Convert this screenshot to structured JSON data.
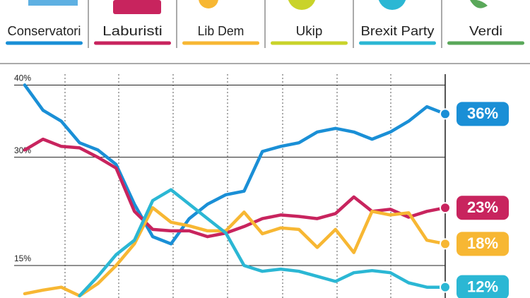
{
  "chart_data": {
    "type": "line",
    "categories": [
      null,
      null,
      null,
      null,
      null,
      null,
      null,
      null,
      null,
      null,
      null,
      null,
      null,
      null,
      null,
      null,
      null,
      null,
      null,
      null,
      null,
      null,
      null,
      null
    ],
    "ylim": [
      10.5,
      42
    ],
    "yticks": [
      {
        "value": 40,
        "label": "40%"
      },
      {
        "value": 30,
        "label": "30%"
      },
      {
        "value": 15,
        "label": "15%"
      }
    ],
    "series": [
      {
        "name": "Conservatori",
        "color": "#1a8fd6",
        "end_label": "36%",
        "values": [
          40,
          36.5,
          35,
          32,
          31,
          29,
          23.5,
          19,
          18,
          21.5,
          23.5,
          24.8,
          25.3,
          30.8,
          31.5,
          32,
          33.5,
          34,
          33.5,
          32.5,
          33.5,
          35,
          37,
          36
        ]
      },
      {
        "name": "Laburisti",
        "color": "#c8245e",
        "end_label": "23%",
        "values": [
          31,
          32.5,
          31.5,
          31.3,
          30,
          28.5,
          22.5,
          20,
          19.8,
          19.8,
          19,
          19.5,
          20.4,
          21.5,
          22,
          21.8,
          21.5,
          22.2,
          24.5,
          22.5,
          22.8,
          21.7,
          22.5,
          23
        ]
      },
      {
        "name": "Lib Dem",
        "color": "#f7b733",
        "end_label": "18%",
        "values": [
          11.1,
          11.6,
          12,
          10.8,
          12.5,
          15,
          18,
          23,
          21,
          20.5,
          19.8,
          19.8,
          22.4,
          19.4,
          20.2,
          20,
          17.5,
          20,
          16.8,
          22.5,
          22,
          22.3,
          18.5,
          18
        ]
      },
      {
        "name": "Ukip",
        "color": "#c9d32a",
        "values": [
          null,
          null,
          null,
          null,
          null,
          null,
          null,
          null,
          null,
          null,
          null,
          null,
          null,
          null,
          null,
          null,
          null,
          null,
          null,
          null,
          null,
          null,
          null,
          null
        ]
      },
      {
        "name": "Brexit Party",
        "color": "#2bb7d4",
        "end_label": "12%",
        "values": [
          null,
          null,
          null,
          10.8,
          13.5,
          16.5,
          18.5,
          24,
          25.5,
          23.5,
          21.5,
          19.5,
          15,
          14.2,
          14.5,
          14.2,
          13.5,
          12.8,
          14,
          14.3,
          14,
          12.6,
          12,
          12
        ]
      },
      {
        "name": "Verdi",
        "color": "#5aa85a",
        "values": [
          null,
          null,
          null,
          null,
          null,
          null,
          null,
          null,
          null,
          null,
          null,
          null,
          null,
          null,
          null,
          null,
          null,
          null,
          null,
          null,
          null,
          null,
          null,
          null
        ]
      }
    ]
  }
}
